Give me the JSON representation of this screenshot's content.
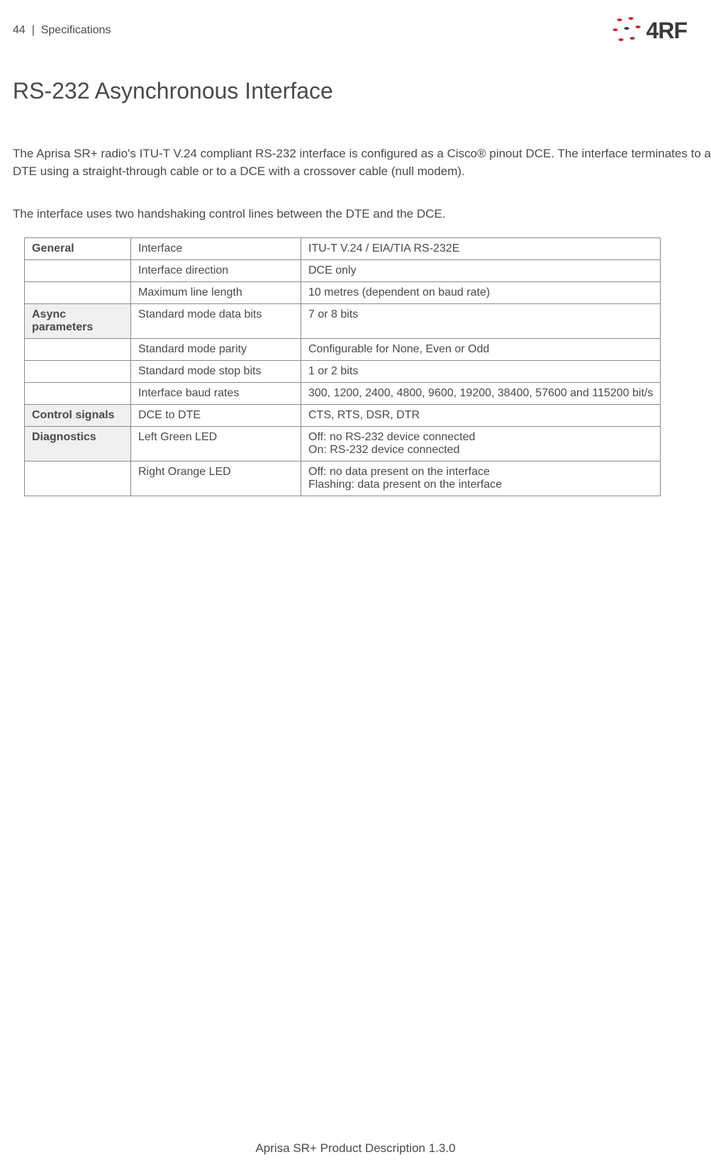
{
  "header": {
    "page_number": "44",
    "separator": "|",
    "section": "Specifications"
  },
  "logo": {
    "text": "4RF",
    "dot_color_red": "#d5212e",
    "dot_color_dark": "#3a3a3a"
  },
  "title": "RS-232 Asynchronous Interface",
  "paragraphs": {
    "p1": "The Aprisa SR+ radio's ITU-T V.24 compliant RS-232 interface is configured as a Cisco® pinout DCE. The interface terminates to a DTE using a straight-through cable or to a DCE with a crossover cable (null modem).",
    "p2": "The interface uses two handshaking control lines between the DTE and the DCE."
  },
  "table": {
    "rows": [
      {
        "c1": "General",
        "c2": "Interface",
        "c3": "ITU-T V.24 / EIA/TIA RS-232E",
        "bold1": true,
        "shade": false
      },
      {
        "c1": "",
        "c2": "Interface direction",
        "c3": "DCE only",
        "bold1": false,
        "shade": false
      },
      {
        "c1": "",
        "c2": "Maximum line length",
        "c3": "10 metres (dependent on baud rate)",
        "bold1": false,
        "shade": false
      },
      {
        "c1": "Async parameters",
        "c2": "Standard mode data bits",
        "c3": "7 or 8 bits",
        "bold1": true,
        "shade": true
      },
      {
        "c1": "",
        "c2": "Standard mode parity",
        "c3": "Configurable for None, Even or Odd",
        "bold1": false,
        "shade": false
      },
      {
        "c1": "",
        "c2": "Standard mode stop bits",
        "c3": "1 or 2 bits",
        "bold1": false,
        "shade": false
      },
      {
        "c1": "",
        "c2": "Interface baud rates",
        "c3": "300, 1200, 2400, 4800, 9600, 19200, 38400, 57600 and 115200 bit/s",
        "bold1": false,
        "shade": false
      },
      {
        "c1": "Control signals",
        "c2": "DCE to DTE",
        "c3": "CTS, RTS, DSR, DTR",
        "bold1": true,
        "shade": true
      },
      {
        "c1": "Diagnostics",
        "c2": "Left Green LED",
        "c3": "Off: no RS-232 device connected\nOn: RS-232 device connected",
        "bold1": true,
        "shade": true
      },
      {
        "c1": "",
        "c2": "Right Orange LED",
        "c3": "Off: no data present on the interface\nFlashing: data present on the interface",
        "bold1": false,
        "shade": false
      }
    ]
  },
  "footer": "Aprisa SR+ Product Description 1.3.0",
  "colors": {
    "text": "#4a4a4a",
    "border": "#8a8a8a",
    "shade_bg": "#f0f0f0",
    "background": "#ffffff"
  }
}
